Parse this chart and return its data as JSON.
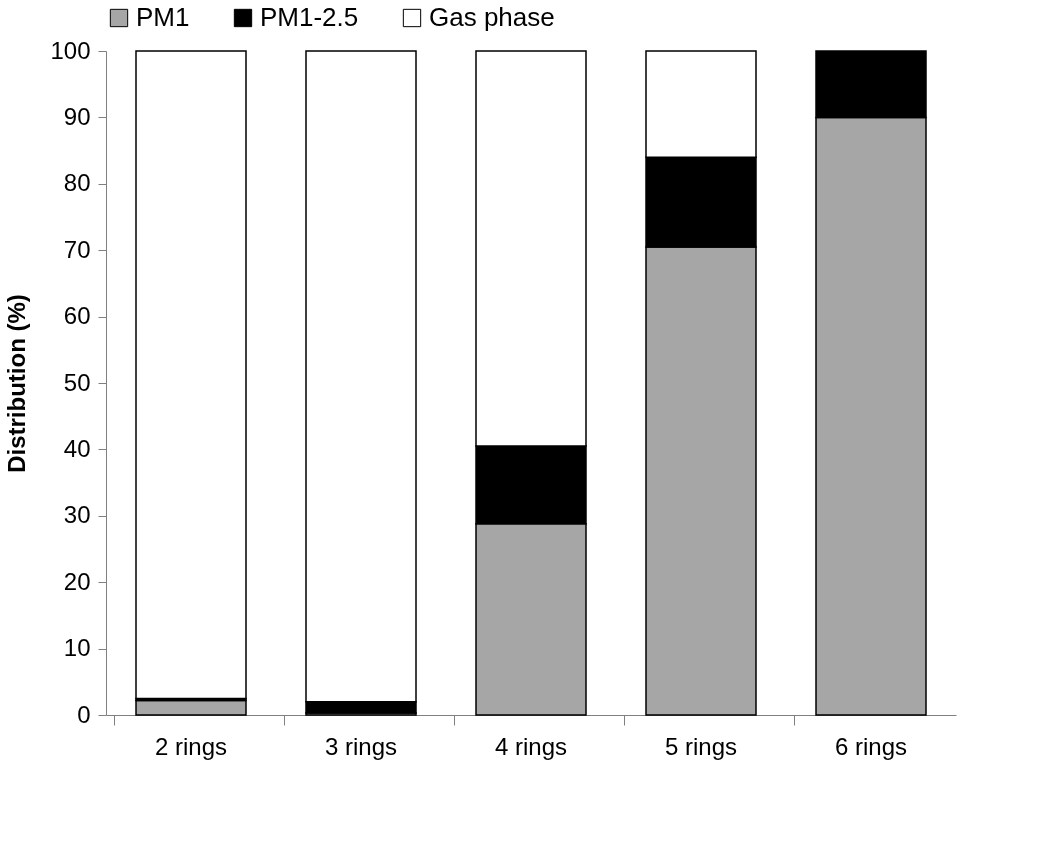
{
  "chart_data": {
    "type": "bar",
    "stacked": true,
    "ylabel": "Distribution (%)",
    "categories": [
      "2 rings",
      "3 rings",
      "4 rings",
      "5 rings",
      "6 rings"
    ],
    "series": [
      {
        "name": "PM1",
        "color": "#a6a6a6",
        "values": [
          2.2,
          0.3,
          28.8,
          70.5,
          90
        ]
      },
      {
        "name": "PM1-2.5",
        "color": "#000000",
        "values": [
          0.3,
          1.7,
          11.7,
          13.5,
          10
        ]
      },
      {
        "name": "Gas phase",
        "color": "#ffffff",
        "values": [
          97.5,
          98,
          59.5,
          16,
          0
        ]
      }
    ],
    "ylim": [
      0,
      100
    ],
    "yticks": [
      0,
      10,
      20,
      30,
      40,
      50,
      60,
      70,
      80,
      90,
      100
    ],
    "grid": false,
    "legend": "top"
  }
}
